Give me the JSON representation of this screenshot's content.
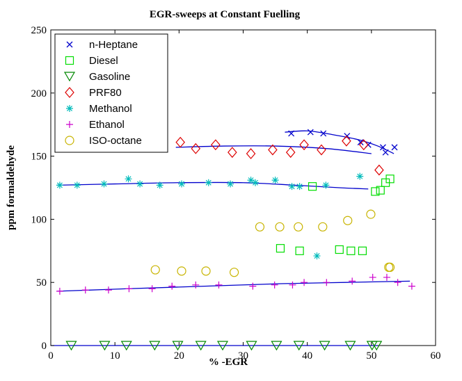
{
  "chart_data": {
    "type": "scatter",
    "title": "EGR-sweeps at Constant Fuelling",
    "xlabel": "% -EGR",
    "ylabel": "ppm formaldehyde",
    "xlim": [
      0,
      60
    ],
    "ylim": [
      0,
      250
    ],
    "xticks": [
      0,
      10,
      20,
      30,
      40,
      50,
      60
    ],
    "yticks": [
      0,
      50,
      100,
      150,
      200,
      250
    ],
    "grid": false,
    "legend_position": "top-left",
    "fit_color": "#0000cc",
    "series": [
      {
        "name": "n-Heptane",
        "marker": "x",
        "color": "#0000cc",
        "points": [
          [
            37.5,
            168
          ],
          [
            40.5,
            169
          ],
          [
            42.5,
            168
          ],
          [
            46.2,
            166
          ],
          [
            48.3,
            161
          ],
          [
            49.5,
            159
          ],
          [
            51.8,
            157
          ],
          [
            52.2,
            153
          ],
          [
            53.6,
            157
          ]
        ],
        "fit": [
          [
            36.5,
            169
          ],
          [
            40,
            170
          ],
          [
            44,
            167
          ],
          [
            48,
            163
          ],
          [
            51,
            158
          ],
          [
            53.5,
            152
          ]
        ]
      },
      {
        "name": "Diesel",
        "marker": "square",
        "color": "#00dd00",
        "points": [
          [
            40.8,
            126
          ],
          [
            35.8,
            77
          ],
          [
            38.8,
            75
          ],
          [
            45,
            76
          ],
          [
            46.8,
            75
          ],
          [
            48.6,
            75
          ],
          [
            50.6,
            122
          ],
          [
            51.4,
            123
          ],
          [
            52.2,
            129
          ],
          [
            52.9,
            132
          ]
        ]
      },
      {
        "name": "Gasoline",
        "marker": "triangle-down",
        "color": "#008800",
        "points": [
          [
            3.2,
            0
          ],
          [
            8.4,
            0
          ],
          [
            11.8,
            0
          ],
          [
            16.2,
            0
          ],
          [
            19.8,
            0
          ],
          [
            23.4,
            0
          ],
          [
            26.8,
            0
          ],
          [
            31.3,
            0
          ],
          [
            35.2,
            0
          ],
          [
            38.7,
            0
          ],
          [
            42.7,
            0
          ],
          [
            46.7,
            0
          ],
          [
            50.1,
            0
          ],
          [
            50.8,
            0
          ]
        ]
      },
      {
        "name": "PRF80",
        "marker": "diamond",
        "color": "#dd0000",
        "points": [
          [
            20.2,
            161
          ],
          [
            22.6,
            156
          ],
          [
            25.7,
            159
          ],
          [
            28.3,
            153
          ],
          [
            31.2,
            152
          ],
          [
            34.6,
            155
          ],
          [
            37.4,
            153
          ],
          [
            39.5,
            159
          ],
          [
            42.2,
            155
          ],
          [
            46.1,
            162
          ],
          [
            48.8,
            159
          ],
          [
            51.2,
            139
          ]
        ],
        "fit": [
          [
            19.5,
            157
          ],
          [
            27,
            158
          ],
          [
            35,
            158
          ],
          [
            43,
            156
          ],
          [
            50,
            152
          ]
        ]
      },
      {
        "name": "Methanol",
        "marker": "asterisk",
        "color": "#00bbbb",
        "points": [
          [
            1.4,
            127
          ],
          [
            4.1,
            127
          ],
          [
            8.3,
            128
          ],
          [
            12.1,
            132
          ],
          [
            13.9,
            128
          ],
          [
            17,
            127
          ],
          [
            20.4,
            128
          ],
          [
            24.6,
            129
          ],
          [
            28,
            128
          ],
          [
            31.2,
            131
          ],
          [
            31.9,
            129
          ],
          [
            35,
            131
          ],
          [
            37.6,
            126
          ],
          [
            38.8,
            126
          ],
          [
            42.9,
            127
          ],
          [
            41.5,
            71
          ],
          [
            48.2,
            134
          ]
        ],
        "fit": [
          [
            1,
            127
          ],
          [
            10,
            128
          ],
          [
            20,
            129
          ],
          [
            30,
            129
          ],
          [
            38,
            127
          ],
          [
            45,
            125
          ],
          [
            49.5,
            124
          ]
        ]
      },
      {
        "name": "Ethanol",
        "marker": "plus",
        "color": "#cc00cc",
        "points": [
          [
            1.4,
            43
          ],
          [
            5.4,
            44
          ],
          [
            9,
            44
          ],
          [
            12.2,
            45
          ],
          [
            15.8,
            45
          ],
          [
            18.9,
            47
          ],
          [
            22.6,
            48
          ],
          [
            26.2,
            48
          ],
          [
            31.5,
            47
          ],
          [
            34.9,
            48
          ],
          [
            37.7,
            48
          ],
          [
            39.5,
            50
          ],
          [
            43,
            50
          ],
          [
            47,
            51
          ],
          [
            50.2,
            54
          ],
          [
            52.4,
            54
          ],
          [
            54.1,
            50
          ],
          [
            56.3,
            47
          ]
        ],
        "fit": [
          [
            1,
            43
          ],
          [
            12,
            45
          ],
          [
            24,
            47
          ],
          [
            36,
            49
          ],
          [
            46,
            50
          ],
          [
            56,
            51
          ]
        ]
      },
      {
        "name": "ISO-octane",
        "marker": "circle",
        "color": "#c8b400",
        "points": [
          [
            16.3,
            60
          ],
          [
            20.4,
            59
          ],
          [
            24.2,
            59
          ],
          [
            28.6,
            58
          ],
          [
            32.6,
            94
          ],
          [
            35.7,
            94
          ],
          [
            38.6,
            94
          ],
          [
            42.4,
            94
          ],
          [
            46.3,
            99
          ],
          [
            49.9,
            104
          ],
          [
            52.7,
            62
          ],
          [
            52.9,
            62
          ]
        ]
      }
    ]
  }
}
